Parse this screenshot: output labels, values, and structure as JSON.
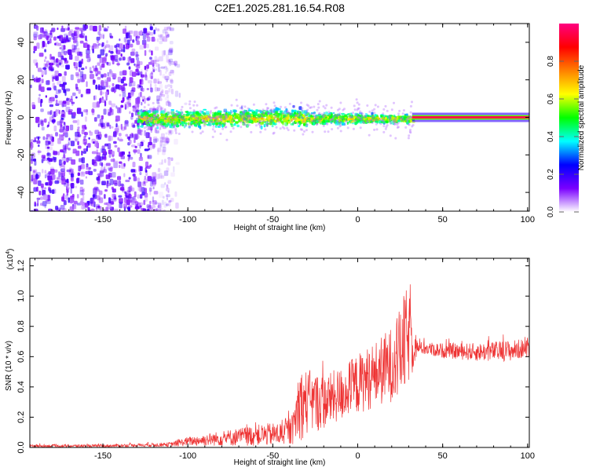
{
  "title": "C2E1.2025.281.16.54.R08",
  "chart_data": [
    {
      "type": "heatmap",
      "title": "C2E1.2025.281.16.54.R08",
      "xlabel": "Height of straight line (km)",
      "ylabel": "Frequency (Hz)",
      "xlim": [
        -193,
        101
      ],
      "ylim": [
        -50,
        50
      ],
      "x_ticks": [
        -150,
        -100,
        -50,
        0,
        50,
        100
      ],
      "y_ticks": [
        -40,
        -20,
        0,
        20,
        40
      ],
      "colorbar": {
        "label": "Normalized spectral amplitude",
        "range": [
          0,
          1
        ],
        "ticks": [
          0.0,
          0.2,
          0.4,
          0.6,
          0.8
        ],
        "colors": [
          "#ffffff",
          "#7a00ff",
          "#0000ff",
          "#00ffff",
          "#00ff00",
          "#ffff00",
          "#ff8000",
          "#ff0000",
          "#ff0080"
        ]
      },
      "regions": [
        {
          "x": [
            -193,
            -110
          ],
          "description": "broadband noise",
          "amplitude": [
            0.05,
            0.2
          ]
        },
        {
          "x": [
            -130,
            32
          ],
          "description": "signal band near 0 Hz",
          "amplitude": [
            0.2,
            0.7
          ]
        },
        {
          "x": [
            32,
            101
          ],
          "description": "steady narrow line at ~0 Hz",
          "amplitude": [
            0.7,
            1.0
          ]
        }
      ]
    },
    {
      "type": "line",
      "xlabel": "Height of straight line (km)",
      "ylabel": "SNR (10 * v/v)",
      "y_scale_label": "(x10",
      "y_scale_exp": "4",
      "xlim": [
        -193,
        101
      ],
      "ylim": [
        0,
        1.25
      ],
      "x_ticks": [
        -150,
        -100,
        -50,
        0,
        50,
        100
      ],
      "y_ticks": [
        0.0,
        0.2,
        0.4,
        0.6,
        0.8,
        1.0,
        1.2
      ],
      "series": [
        {
          "name": "SNR",
          "color": "#ee3333",
          "x": [
            -193,
            -150,
            -130,
            -110,
            -100,
            -80,
            -60,
            -45,
            -38,
            -35,
            -30,
            -20,
            -10,
            0,
            10,
            20,
            25,
            28,
            30,
            33,
            35,
            50,
            70,
            90,
            101
          ],
          "mean": [
            0.01,
            0.01,
            0.015,
            0.02,
            0.04,
            0.06,
            0.08,
            0.09,
            0.12,
            0.28,
            0.3,
            0.3,
            0.35,
            0.42,
            0.48,
            0.55,
            0.62,
            0.7,
            0.72,
            0.72,
            0.66,
            0.64,
            0.63,
            0.64,
            0.66
          ],
          "spread": [
            0.01,
            0.01,
            0.01,
            0.015,
            0.03,
            0.05,
            0.07,
            0.08,
            0.1,
            0.25,
            0.22,
            0.18,
            0.18,
            0.2,
            0.22,
            0.25,
            0.3,
            0.35,
            0.3,
            0.22,
            0.04,
            0.05,
            0.06,
            0.07,
            0.06
          ]
        }
      ]
    }
  ]
}
